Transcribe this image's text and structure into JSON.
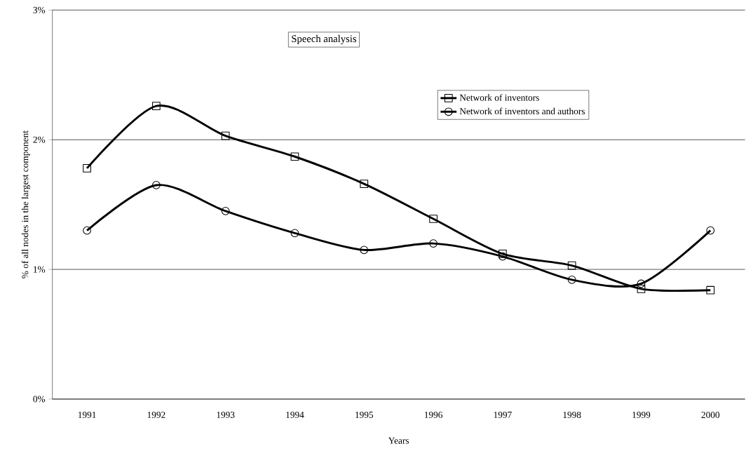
{
  "chart_data": {
    "type": "line",
    "title": "Speech analysis",
    "xlabel": "Years",
    "ylabel": "% of all nodes in the largest component",
    "categories": [
      "1991",
      "1992",
      "1993",
      "1994",
      "1995",
      "1996",
      "1997",
      "1998",
      "1999",
      "2000"
    ],
    "series": [
      {
        "name": "Network of inventors",
        "color": "#000000",
        "marker": "square",
        "values": [
          1.78,
          2.26,
          2.03,
          1.87,
          1.66,
          1.39,
          1.12,
          1.03,
          0.85,
          0.84
        ]
      },
      {
        "name": "Network of inventors and authors",
        "color": "#000000",
        "marker": "circle",
        "values": [
          1.3,
          1.65,
          1.45,
          1.28,
          1.15,
          1.2,
          1.1,
          0.92,
          0.89,
          1.3
        ]
      }
    ],
    "ylim": [
      0,
      3
    ],
    "yticks": [
      {
        "value": 0,
        "label": "0%"
      },
      {
        "value": 1,
        "label": "1%"
      },
      {
        "value": 2,
        "label": "2%"
      },
      {
        "value": 3,
        "label": "3%"
      }
    ],
    "grid": "y",
    "legend": "top right",
    "line_style": "solid"
  }
}
